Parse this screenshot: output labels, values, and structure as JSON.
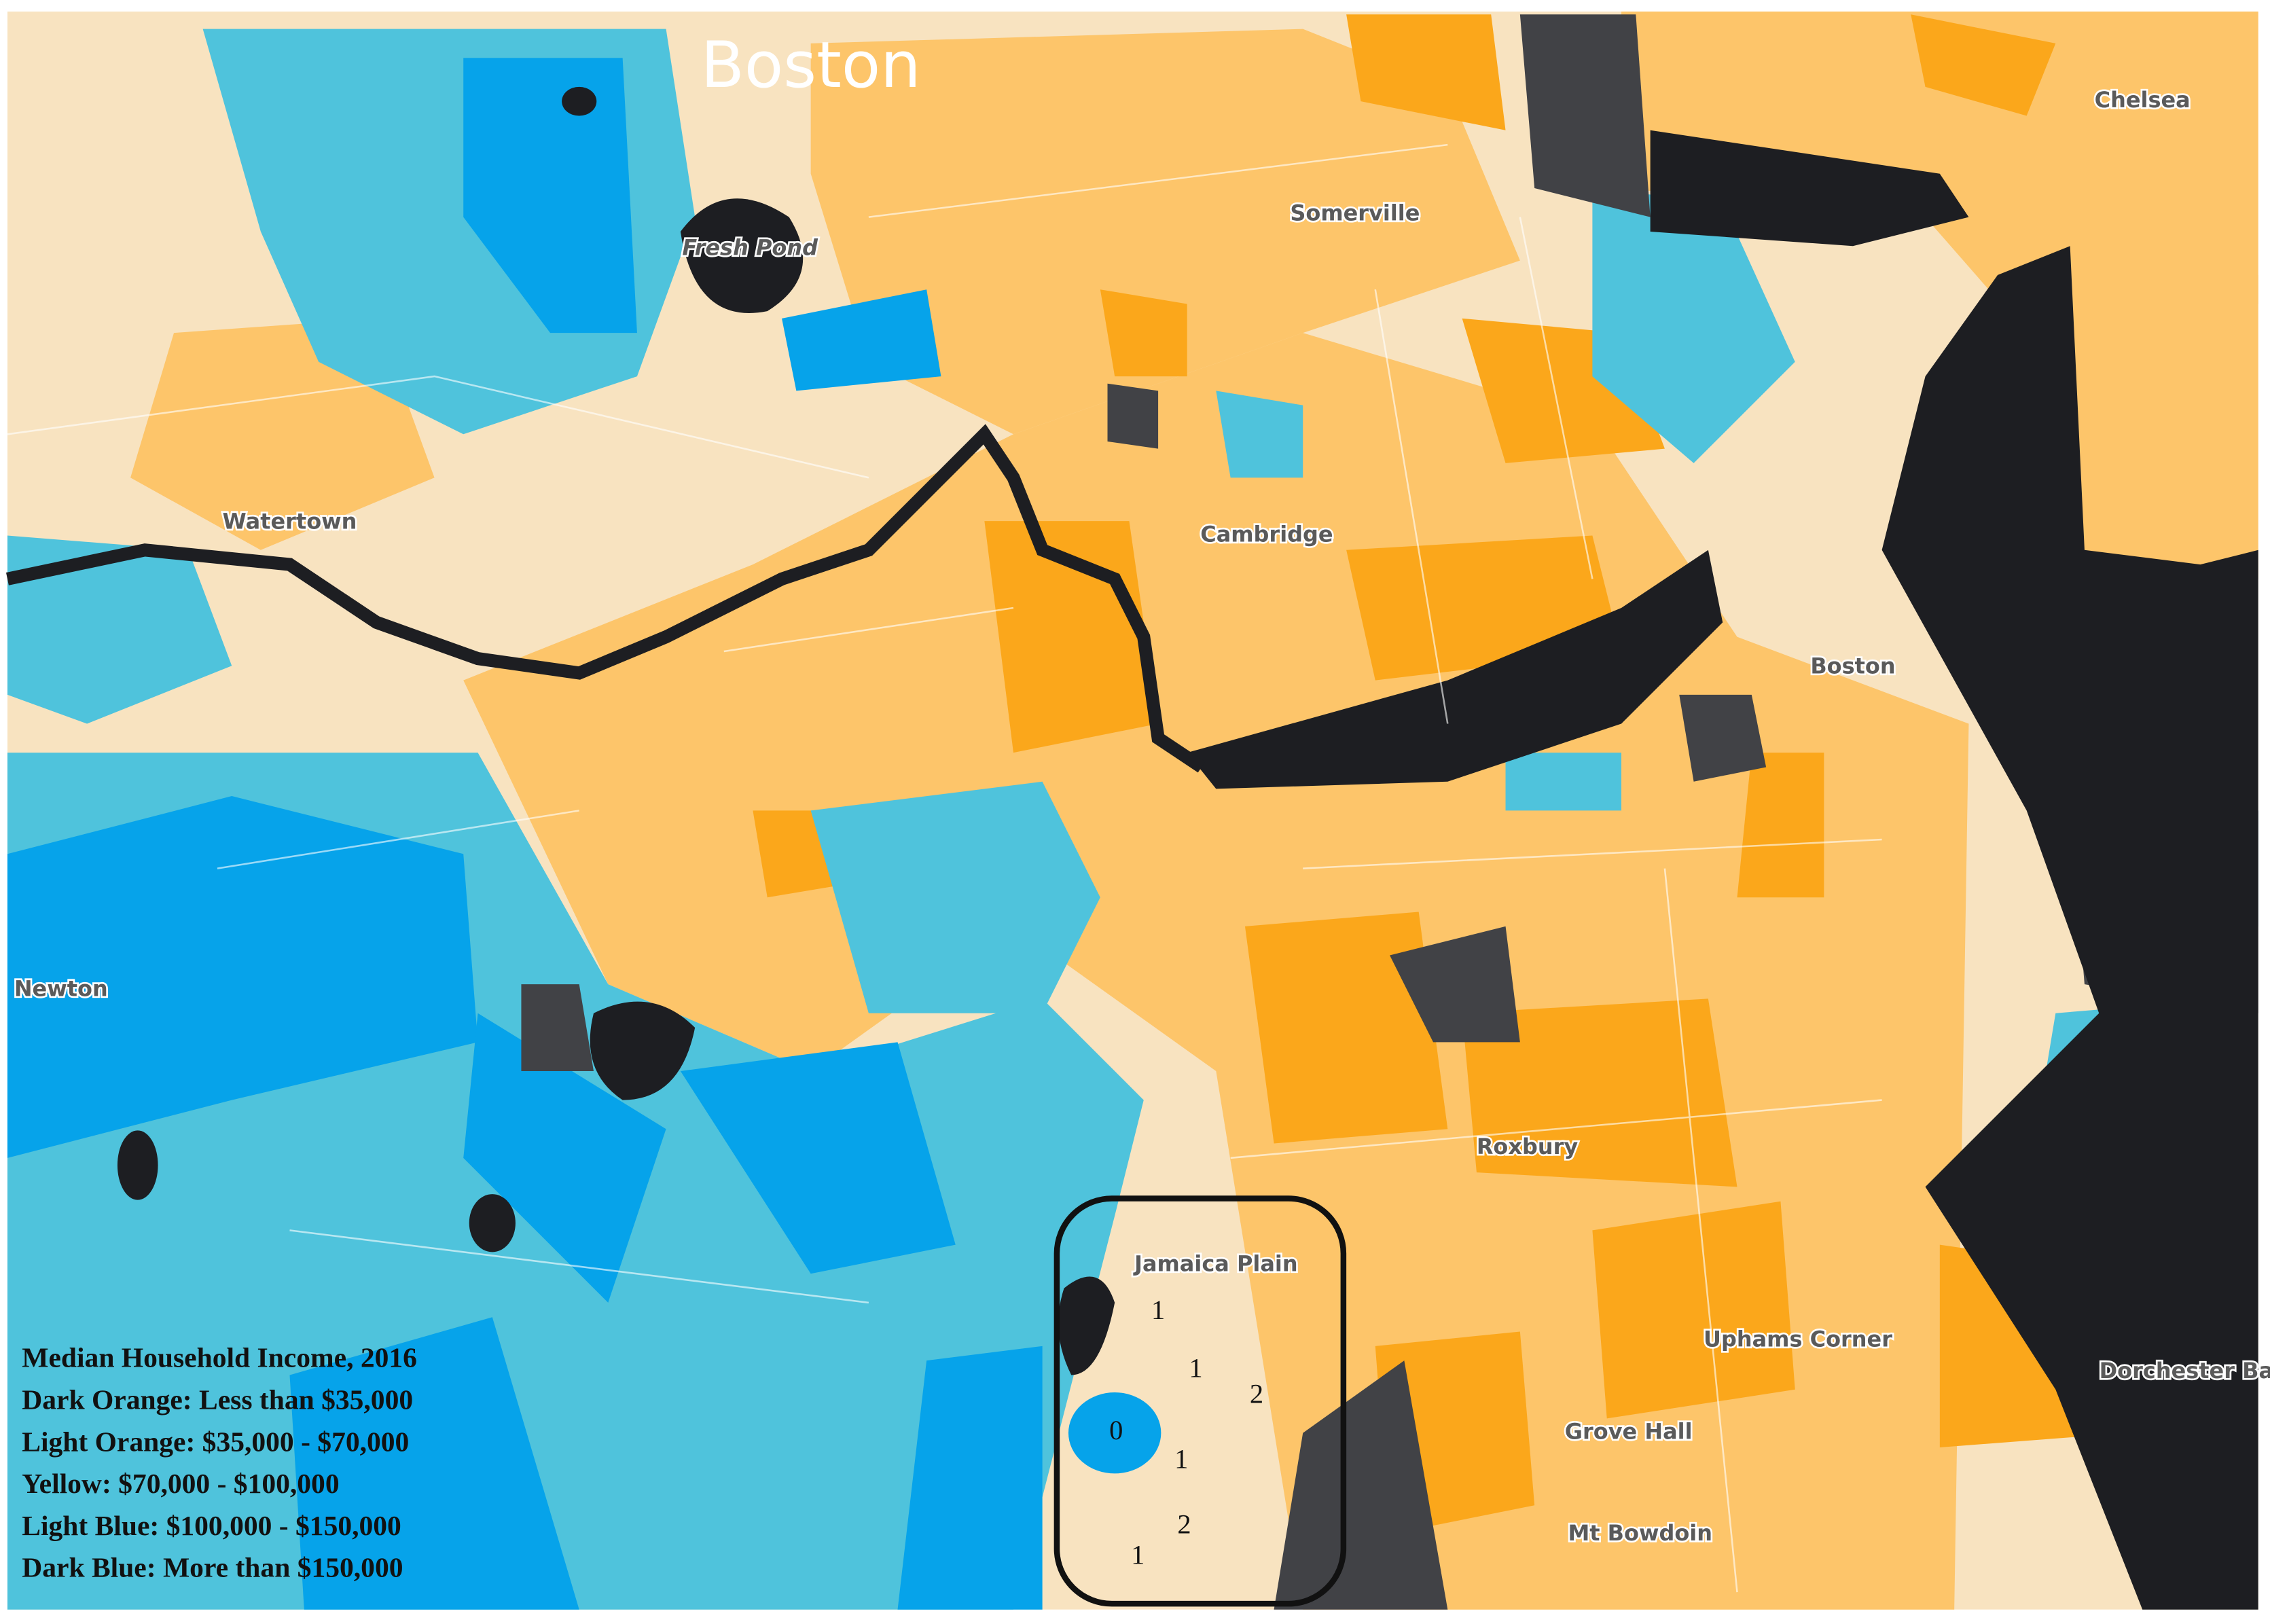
{
  "title": "Boston",
  "places": [
    "Chelsea",
    "Somerville",
    "Fresh Pond",
    "Watertown",
    "Cambridge",
    "Boston",
    "Newton",
    "Roxbury",
    "Jamaica Plain",
    "Uphams Corner",
    "Dorchester Bay",
    "Grove Hall",
    "Mt Bowdoin"
  ],
  "legend": {
    "title": "Median Household Income, 2016",
    "items": [
      "Dark Orange: Less than $35,000",
      "Light Orange: $35,000 - $70,000",
      "Yellow: $70,000 - $100,000",
      "Light Blue: $100,000 - $150,000",
      "Dark Blue: More than $150,000"
    ]
  },
  "highlight_counts": [
    1,
    1,
    2,
    0,
    1,
    2,
    1
  ]
}
